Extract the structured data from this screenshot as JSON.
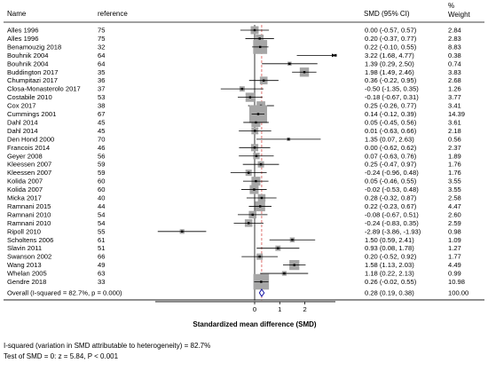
{
  "header": {
    "name": "Name",
    "reference": "reference",
    "smd": "SMD (95% CI)",
    "weight_pct": "%",
    "weight": "Weight"
  },
  "footer": {
    "isq": "I-squared (variation in SMD attributable to heterogeneity) = 82.7%",
    "test": "Test of SMD = 0: z = 5.84, P < 0.001"
  },
  "chart_data": {
    "type": "forest",
    "xlabel": "Standardized mean difference (SMD)",
    "xticks": [
      0,
      1,
      2
    ],
    "xlim": [
      -2.9,
      3.3
    ],
    "null_line": 0,
    "pooled_line": 0.28,
    "studies": [
      {
        "name": "Alles 1996",
        "ref": "75",
        "smd": 0.0,
        "lo": -0.57,
        "hi": 0.57,
        "ci": "0.00 (-0.57, 0.57)",
        "weight": 2.84,
        "weight_label": "2.84"
      },
      {
        "name": "Alles 1996",
        "ref": "75",
        "smd": 0.2,
        "lo": -0.37,
        "hi": 0.77,
        "ci": "0.20 (-0.37, 0.77)",
        "weight": 2.83,
        "weight_label": "2.83"
      },
      {
        "name": "Benamouzig  2018",
        "ref": "32",
        "smd": 0.22,
        "lo": -0.1,
        "hi": 0.55,
        "ci": "0.22 (-0.10, 0.55)",
        "weight": 8.83,
        "weight_label": "8.83"
      },
      {
        "name": "Bouhnik 2004",
        "ref": "64",
        "smd": 3.22,
        "lo": 1.68,
        "hi": 4.77,
        "ci": "3.22 (1.68, 4.77)",
        "weight": 0.38,
        "weight_label": "0.38"
      },
      {
        "name": "Bouhnik 2004",
        "ref": "64",
        "smd": 1.39,
        "lo": 0.29,
        "hi": 2.5,
        "ci": "1.39 (0.29, 2.50)",
        "weight": 0.74,
        "weight_label": "0.74"
      },
      {
        "name": "Buddington 2017",
        "ref": "35",
        "smd": 1.98,
        "lo": 1.49,
        "hi": 2.46,
        "ci": "1.98 (1.49, 2.46)",
        "weight": 3.83,
        "weight_label": "3.83"
      },
      {
        "name": "Chumpitazi 2017",
        "ref": "36",
        "smd": 0.36,
        "lo": -0.22,
        "hi": 0.95,
        "ci": "0.36 (-0.22, 0.95)",
        "weight": 2.68,
        "weight_label": "2.68"
      },
      {
        "name": "Closa-Monasterolo 2017",
        "ref": "37",
        "smd": -0.5,
        "lo": -1.35,
        "hi": 0.35,
        "ci": "-0.50 (-1.35, 0.35)",
        "weight": 1.26,
        "weight_label": "1.26"
      },
      {
        "name": "Costabile 2010",
        "ref": "53",
        "smd": -0.18,
        "lo": -0.67,
        "hi": 0.31,
        "ci": "-0.18 (-0.67, 0.31)",
        "weight": 3.77,
        "weight_label": "3.77"
      },
      {
        "name": "Cox 2017",
        "ref": "38",
        "smd": 0.25,
        "lo": -0.26,
        "hi": 0.77,
        "ci": "0.25 (-0.26, 0.77)",
        "weight": 3.41,
        "weight_label": "3.41"
      },
      {
        "name": "Cummings 2001",
        "ref": "67",
        "smd": 0.14,
        "lo": -0.12,
        "hi": 0.39,
        "ci": "0.14 (-0.12, 0.39)",
        "weight": 14.39,
        "weight_label": "14.39"
      },
      {
        "name": "Dahl 2014",
        "ref": "45",
        "smd": 0.05,
        "lo": -0.45,
        "hi": 0.56,
        "ci": "0.05 (-0.45, 0.56)",
        "weight": 3.61,
        "weight_label": "3.61"
      },
      {
        "name": "Dahl 2014",
        "ref": "45",
        "smd": 0.01,
        "lo": -0.63,
        "hi": 0.66,
        "ci": "0.01 (-0.63, 0.66)",
        "weight": 2.18,
        "weight_label": "2.18"
      },
      {
        "name": "Den Hond 2000",
        "ref": "70",
        "smd": 1.35,
        "lo": 0.07,
        "hi": 2.63,
        "ci": "1.35 (0.07, 2.63)",
        "weight": 0.56,
        "weight_label": "0.56"
      },
      {
        "name": "Francois 2014",
        "ref": "46",
        "smd": 0.0,
        "lo": -0.62,
        "hi": 0.62,
        "ci": "0.00 (-0.62, 0.62)",
        "weight": 2.37,
        "weight_label": "2.37"
      },
      {
        "name": "Geyer 2008",
        "ref": "56",
        "smd": 0.07,
        "lo": -0.63,
        "hi": 0.76,
        "ci": "0.07 (-0.63, 0.76)",
        "weight": 1.89,
        "weight_label": "1.89"
      },
      {
        "name": "Kleessen 2007",
        "ref": "59",
        "smd": 0.25,
        "lo": -0.47,
        "hi": 0.97,
        "ci": "0.25 (-0.47, 0.97)",
        "weight": 1.76,
        "weight_label": "1.76"
      },
      {
        "name": "Kleessen 2007",
        "ref": "59",
        "smd": -0.24,
        "lo": -0.96,
        "hi": 0.48,
        "ci": "-0.24 (-0.96, 0.48)",
        "weight": 1.76,
        "weight_label": "1.76"
      },
      {
        "name": "Kolida 2007",
        "ref": "60",
        "smd": 0.05,
        "lo": -0.46,
        "hi": 0.55,
        "ci": "0.05 (-0.46, 0.55)",
        "weight": 3.55,
        "weight_label": "3.55"
      },
      {
        "name": "Kolida 2007",
        "ref": "60",
        "smd": -0.02,
        "lo": -0.53,
        "hi": 0.48,
        "ci": "-0.02 (-0.53, 0.48)",
        "weight": 3.55,
        "weight_label": "3.55"
      },
      {
        "name": "Micka  2017",
        "ref": "40",
        "smd": 0.28,
        "lo": -0.32,
        "hi": 0.87,
        "ci": "0.28 (-0.32, 0.87)",
        "weight": 2.58,
        "weight_label": "2.58"
      },
      {
        "name": "Ramnani 2015",
        "ref": "44",
        "smd": 0.22,
        "lo": -0.23,
        "hi": 0.67,
        "ci": "0.22 (-0.23, 0.67)",
        "weight": 4.47,
        "weight_label": "4.47"
      },
      {
        "name": "Ramnani 2010",
        "ref": "54",
        "smd": -0.08,
        "lo": -0.67,
        "hi": 0.51,
        "ci": "-0.08 (-0.67, 0.51)",
        "weight": 2.6,
        "weight_label": "2.60"
      },
      {
        "name": "Ramnani 2010",
        "ref": "54",
        "smd": -0.24,
        "lo": -0.83,
        "hi": 0.35,
        "ci": "-0.24 (-0.83, 0.35)",
        "weight": 2.59,
        "weight_label": "2.59"
      },
      {
        "name": "Ripoll 2010",
        "ref": "55",
        "smd": -2.89,
        "lo": -3.86,
        "hi": -1.93,
        "ci": "-2.89 (-3.86, -1.93)",
        "weight": 0.98,
        "weight_label": "0.98"
      },
      {
        "name": "Scholtens 2006",
        "ref": "61",
        "smd": 1.5,
        "lo": 0.59,
        "hi": 2.41,
        "ci": "1.50 (0.59, 2.41)",
        "weight": 1.09,
        "weight_label": "1.09"
      },
      {
        "name": "Slavin 2011",
        "ref": "51",
        "smd": 0.93,
        "lo": 0.08,
        "hi": 1.78,
        "ci": "0.93 (0.08, 1.78)",
        "weight": 1.27,
        "weight_label": "1.27"
      },
      {
        "name": "Swanson 2002",
        "ref": "66",
        "smd": 0.2,
        "lo": -0.52,
        "hi": 0.92,
        "ci": "0.20 (-0.52, 0.92)",
        "weight": 1.77,
        "weight_label": "1.77"
      },
      {
        "name": "Wang 2013",
        "ref": "49",
        "smd": 1.58,
        "lo": 1.13,
        "hi": 2.03,
        "ci": "1.58 (1.13, 2.03)",
        "weight": 4.49,
        "weight_label": "4.49"
      },
      {
        "name": "Whelan 2005",
        "ref": "63",
        "smd": 1.18,
        "lo": 0.22,
        "hi": 2.13,
        "ci": "1.18 (0.22, 2.13)",
        "weight": 0.99,
        "weight_label": "0.99"
      },
      {
        "name": "Gendre 2018",
        "ref": "33",
        "smd": 0.26,
        "lo": -0.02,
        "hi": 0.55,
        "ci": "0.26 (-0.02, 0.55)",
        "weight": 10.98,
        "weight_label": "10.98"
      }
    ],
    "overall": {
      "label": "Overall  (I-squared = 82.7%, p = 0.000)",
      "smd": 0.28,
      "lo": 0.19,
      "hi": 0.38,
      "ci": "0.28 (0.19, 0.38)",
      "weight_label": "100.00"
    },
    "colors": {
      "box": "#a6a6a6",
      "ci_line": "#000000",
      "pooled_line": "#d9534f",
      "diamond": "#1a1aa6"
    }
  }
}
